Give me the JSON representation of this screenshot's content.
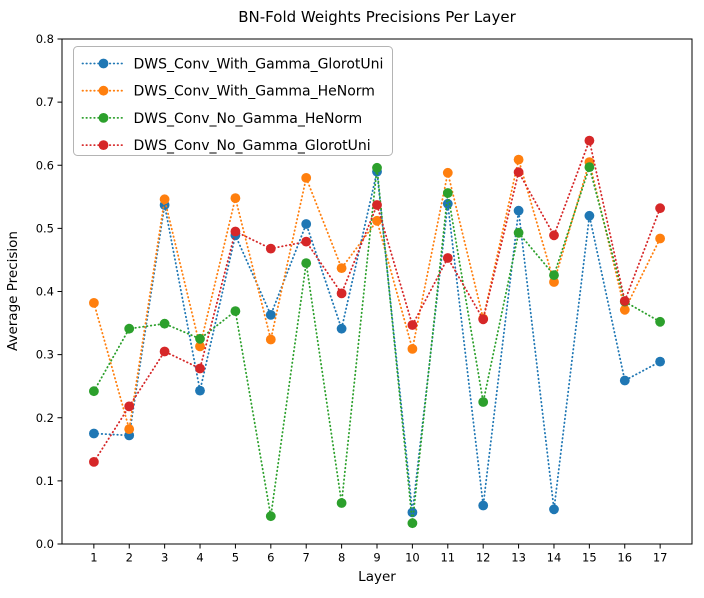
{
  "window": {
    "title": "BN-Fold Weights Precisions Per Layer"
  },
  "chart_data": {
    "type": "line",
    "title": "BN-Fold Weights Precisions Per Layer",
    "xlabel": "Layer",
    "ylabel": "Average Precision",
    "x": [
      1,
      2,
      3,
      4,
      5,
      6,
      7,
      8,
      9,
      10,
      11,
      12,
      13,
      14,
      15,
      16,
      17
    ],
    "xtick_labels": [
      "1",
      "2",
      "3",
      "4",
      "5",
      "6",
      "7",
      "8",
      "9",
      "10",
      "11",
      "12",
      "13",
      "14",
      "15",
      "16",
      "17"
    ],
    "ytick_values": [
      0.0,
      0.1,
      0.2,
      0.3,
      0.4,
      0.5,
      0.6,
      0.7,
      0.8
    ],
    "ytick_labels": [
      "0.0",
      "0.1",
      "0.2",
      "0.3",
      "0.4",
      "0.5",
      "0.6",
      "0.7",
      "0.8"
    ],
    "xlim": [
      0.1,
      17.9
    ],
    "ylim": [
      0.0,
      0.8
    ],
    "grid": false,
    "legend_position": "upper left",
    "line_style": "dotted",
    "marker": "circle",
    "background_color": "#ffffff",
    "axes_color": "#000000",
    "series": [
      {
        "name": "DWS_Conv_With_Gamma_GlorotUni",
        "color": "#1f77b4",
        "values": [
          0.175,
          0.172,
          0.537,
          0.243,
          0.489,
          0.363,
          0.507,
          0.341,
          0.59,
          0.05,
          0.539,
          0.061,
          0.528,
          0.055,
          0.52,
          0.259,
          0.289
        ]
      },
      {
        "name": "DWS_Conv_With_Gamma_HeNorm",
        "color": "#ff7f0e",
        "values": [
          0.382,
          0.182,
          0.546,
          0.313,
          0.548,
          0.324,
          0.58,
          0.437,
          0.512,
          0.309,
          0.588,
          0.357,
          0.609,
          0.415,
          0.605,
          0.371,
          0.484
        ]
      },
      {
        "name": "DWS_Conv_No_Gamma_HeNorm",
        "color": "#2ca02c",
        "values": [
          0.242,
          0.341,
          0.349,
          0.325,
          0.369,
          0.044,
          0.445,
          0.065,
          0.596,
          0.033,
          0.556,
          0.225,
          0.493,
          0.426,
          0.597,
          0.384,
          0.352
        ]
      },
      {
        "name": "DWS_Conv_No_Gamma_GlorotUni",
        "color": "#d62728",
        "values": [
          0.13,
          0.218,
          0.305,
          0.278,
          0.495,
          0.468,
          0.479,
          0.397,
          0.537,
          0.347,
          0.453,
          0.356,
          0.589,
          0.489,
          0.639,
          0.385,
          0.532
        ]
      }
    ]
  }
}
